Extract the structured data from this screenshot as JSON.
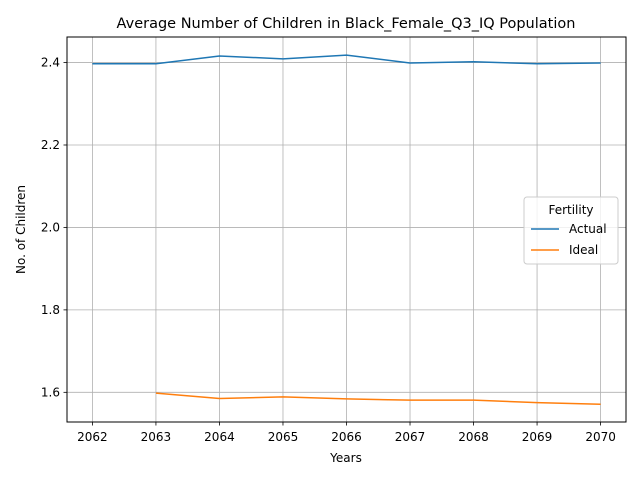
{
  "chart_data": {
    "type": "line",
    "title": "Average Number of Children in Black_Female_Q3_IQ Population",
    "xlabel": "Years",
    "ylabel": "No. of Children",
    "x": [
      2062,
      2063,
      2064,
      2065,
      2066,
      2067,
      2068,
      2069,
      2070
    ],
    "xlim": [
      2061.6,
      2070.4
    ],
    "ylim": [
      1.528,
      2.462
    ],
    "yticks": [
      1.6,
      1.8,
      2.0,
      2.2,
      2.4
    ],
    "yticklabels": [
      "1.6",
      "1.8",
      "2.0",
      "2.2",
      "2.4"
    ],
    "xticklabels": [
      "2062",
      "2063",
      "2064",
      "2065",
      "2066",
      "2067",
      "2068",
      "2069",
      "2070"
    ],
    "grid": true,
    "legend": {
      "title": "Fertility",
      "placement": "center-right"
    },
    "series": [
      {
        "name": "Actual",
        "color": "#1f77b4",
        "x": [
          2062,
          2063,
          2064,
          2065,
          2066,
          2067,
          2068,
          2069,
          2070
        ],
        "values": [
          2.397,
          2.397,
          2.416,
          2.409,
          2.418,
          2.399,
          2.402,
          2.397,
          2.399
        ]
      },
      {
        "name": "Ideal",
        "color": "#ff7f0e",
        "x": [
          2063,
          2064,
          2065,
          2066,
          2067,
          2068,
          2069,
          2070
        ],
        "values": [
          1.598,
          1.585,
          1.589,
          1.584,
          1.581,
          1.581,
          1.575,
          1.571
        ]
      }
    ]
  }
}
